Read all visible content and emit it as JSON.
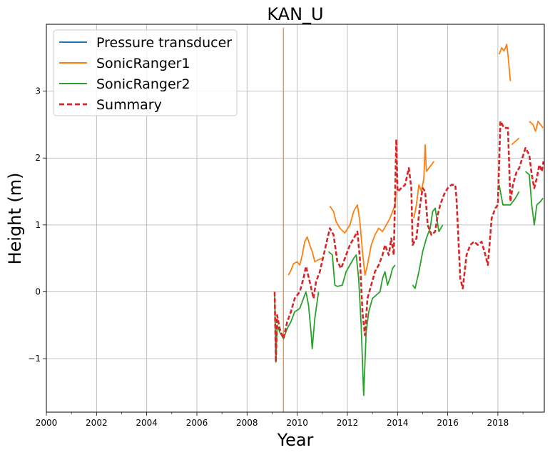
{
  "chart_data": {
    "type": "line",
    "title": "KAN_U",
    "xlabel": "Year",
    "ylabel": "Height (m)",
    "xlim": [
      2000,
      2019.85
    ],
    "ylim": [
      -1.8,
      4.0
    ],
    "x_ticks": [
      "2000",
      "2002",
      "2004",
      "2006",
      "2008",
      "2010",
      "2012",
      "2014",
      "2016",
      "2018"
    ],
    "y_ticks": [
      "−1",
      "0",
      "1",
      "2",
      "3"
    ],
    "y_tick_values": [
      -1,
      0,
      1,
      2,
      3
    ],
    "grid": true,
    "legend_position": "top-left",
    "series": [
      {
        "name": "Pressure transducer",
        "color": "#1f77b4",
        "style": "solid",
        "points": []
      },
      {
        "name": "SonicRanger1",
        "color": "#ff7f0e",
        "style": "solid",
        "segments": [
          [
            [
              2009.45,
              3.95
            ],
            [
              2009.45,
              -1.8
            ]
          ],
          [
            [
              2009.65,
              0.25
            ],
            [
              2009.75,
              0.32
            ],
            [
              2009.85,
              0.42
            ],
            [
              2010.0,
              0.45
            ],
            [
              2010.1,
              0.4
            ],
            [
              2010.2,
              0.55
            ],
            [
              2010.3,
              0.75
            ],
            [
              2010.4,
              0.82
            ],
            [
              2010.5,
              0.7
            ],
            [
              2010.6,
              0.6
            ],
            [
              2010.7,
              0.45
            ],
            [
              2010.85,
              0.48
            ],
            [
              2011.0,
              0.5
            ]
          ],
          [
            [
              2011.3,
              1.28
            ],
            [
              2011.45,
              1.2
            ],
            [
              2011.55,
              1.05
            ],
            [
              2011.7,
              0.95
            ],
            [
              2011.9,
              0.88
            ],
            [
              2012.1,
              1.0
            ],
            [
              2012.25,
              1.2
            ],
            [
              2012.4,
              1.3
            ],
            [
              2012.5,
              1.05
            ],
            [
              2012.6,
              0.6
            ],
            [
              2012.7,
              0.25
            ],
            [
              2012.8,
              0.4
            ],
            [
              2012.95,
              0.7
            ],
            [
              2013.1,
              0.85
            ],
            [
              2013.25,
              0.95
            ],
            [
              2013.4,
              0.9
            ],
            [
              2013.55,
              1.0
            ],
            [
              2013.7,
              1.1
            ],
            [
              2013.8,
              1.2
            ],
            [
              2013.9,
              1.3
            ],
            [
              2013.95,
              1.5
            ]
          ],
          [
            [
              2014.65,
              1.1
            ],
            [
              2014.75,
              1.3
            ],
            [
              2014.85,
              1.6
            ],
            [
              2014.95,
              1.5
            ],
            [
              2015.05,
              1.7
            ],
            [
              2015.1,
              2.2
            ],
            [
              2015.15,
              1.8
            ],
            [
              2015.25,
              1.85
            ],
            [
              2015.35,
              1.9
            ],
            [
              2015.45,
              1.95
            ]
          ],
          [
            [
              2018.05,
              3.55
            ],
            [
              2018.15,
              3.65
            ],
            [
              2018.25,
              3.6
            ],
            [
              2018.35,
              3.7
            ],
            [
              2018.4,
              3.55
            ],
            [
              2018.5,
              3.15
            ]
          ],
          [
            [
              2018.55,
              2.2
            ],
            [
              2018.7,
              2.25
            ],
            [
              2018.85,
              2.3
            ]
          ],
          [
            [
              2019.25,
              2.55
            ],
            [
              2019.4,
              2.5
            ],
            [
              2019.5,
              2.4
            ],
            [
              2019.6,
              2.55
            ],
            [
              2019.7,
              2.5
            ],
            [
              2019.8,
              2.45
            ]
          ]
        ]
      },
      {
        "name": "SonicRanger2",
        "color": "#2ca02c",
        "style": "solid",
        "segments": [
          [
            [
              2009.1,
              0.0
            ],
            [
              2009.15,
              -1.05
            ],
            [
              2009.2,
              -0.5
            ],
            [
              2009.3,
              -0.6
            ],
            [
              2009.45,
              -0.7
            ],
            [
              2009.6,
              -0.55
            ],
            [
              2009.75,
              -0.45
            ],
            [
              2009.9,
              -0.3
            ],
            [
              2010.1,
              -0.25
            ],
            [
              2010.25,
              -0.1
            ],
            [
              2010.35,
              0.0
            ],
            [
              2010.45,
              -0.2
            ],
            [
              2010.55,
              -0.6
            ],
            [
              2010.6,
              -0.85
            ],
            [
              2010.7,
              -0.4
            ],
            [
              2010.85,
              0.0
            ]
          ],
          [
            [
              2011.25,
              0.6
            ],
            [
              2011.4,
              0.55
            ],
            [
              2011.5,
              0.1
            ],
            [
              2011.6,
              0.08
            ],
            [
              2011.8,
              0.1
            ],
            [
              2011.95,
              0.3
            ],
            [
              2012.1,
              0.4
            ],
            [
              2012.25,
              0.5
            ],
            [
              2012.35,
              0.55
            ],
            [
              2012.45,
              0.2
            ],
            [
              2012.55,
              -0.5
            ],
            [
              2012.65,
              -1.55
            ],
            [
              2012.75,
              -0.6
            ],
            [
              2012.85,
              -0.3
            ],
            [
              2013.0,
              -0.1
            ],
            [
              2013.15,
              -0.05
            ],
            [
              2013.3,
              0.0
            ],
            [
              2013.4,
              0.2
            ],
            [
              2013.5,
              0.3
            ],
            [
              2013.6,
              0.1
            ],
            [
              2013.7,
              0.2
            ],
            [
              2013.8,
              0.35
            ],
            [
              2013.9,
              0.4
            ]
          ],
          [
            [
              2014.6,
              0.1
            ],
            [
              2014.7,
              0.05
            ],
            [
              2014.85,
              0.3
            ],
            [
              2015.0,
              0.6
            ],
            [
              2015.15,
              0.8
            ],
            [
              2015.3,
              0.95
            ],
            [
              2015.4,
              1.2
            ],
            [
              2015.5,
              1.25
            ],
            [
              2015.65,
              0.9
            ],
            [
              2015.8,
              1.0
            ]
          ],
          [
            [
              2018.05,
              1.6
            ],
            [
              2018.2,
              1.3
            ],
            [
              2018.35,
              1.3
            ],
            [
              2018.5,
              1.3
            ],
            [
              2018.7,
              1.4
            ],
            [
              2018.85,
              1.5
            ]
          ],
          [
            [
              2019.1,
              1.8
            ],
            [
              2019.25,
              1.75
            ],
            [
              2019.35,
              1.3
            ],
            [
              2019.45,
              1.0
            ],
            [
              2019.55,
              1.3
            ],
            [
              2019.7,
              1.35
            ],
            [
              2019.8,
              1.4
            ]
          ]
        ]
      },
      {
        "name": "Summary",
        "color": "#d62728",
        "style": "dashed",
        "points": [
          [
            2009.1,
            0.0
          ],
          [
            2009.15,
            -1.05
          ],
          [
            2009.2,
            -0.35
          ],
          [
            2009.3,
            -0.55
          ],
          [
            2009.45,
            -0.7
          ],
          [
            2009.6,
            -0.45
          ],
          [
            2009.75,
            -0.3
          ],
          [
            2009.9,
            -0.1
          ],
          [
            2010.1,
            0.0
          ],
          [
            2010.25,
            0.2
          ],
          [
            2010.35,
            0.38
          ],
          [
            2010.5,
            0.15
          ],
          [
            2010.65,
            -0.1
          ],
          [
            2010.75,
            0.15
          ],
          [
            2010.9,
            0.3
          ],
          [
            2011.3,
            0.95
          ],
          [
            2011.45,
            0.85
          ],
          [
            2011.6,
            0.45
          ],
          [
            2011.75,
            0.35
          ],
          [
            2011.95,
            0.55
          ],
          [
            2012.1,
            0.7
          ],
          [
            2012.25,
            0.8
          ],
          [
            2012.4,
            0.9
          ],
          [
            2012.5,
            0.5
          ],
          [
            2012.6,
            -0.3
          ],
          [
            2012.7,
            -0.65
          ],
          [
            2012.8,
            -0.1
          ],
          [
            2012.95,
            0.1
          ],
          [
            2013.1,
            0.3
          ],
          [
            2013.25,
            0.4
          ],
          [
            2013.4,
            0.55
          ],
          [
            2013.5,
            0.7
          ],
          [
            2013.65,
            0.55
          ],
          [
            2013.75,
            0.8
          ],
          [
            2013.85,
            0.55
          ],
          [
            2013.95,
            2.28
          ],
          [
            2014.0,
            1.5
          ],
          [
            2014.15,
            1.55
          ],
          [
            2014.3,
            1.6
          ],
          [
            2014.45,
            1.85
          ],
          [
            2014.55,
            1.55
          ],
          [
            2014.6,
            0.7
          ],
          [
            2014.75,
            0.8
          ],
          [
            2014.9,
            1.3
          ],
          [
            2015.0,
            1.55
          ],
          [
            2015.1,
            1.5
          ],
          [
            2015.2,
            1.0
          ],
          [
            2015.35,
            0.85
          ],
          [
            2015.5,
            0.9
          ],
          [
            2015.6,
            1.15
          ],
          [
            2015.7,
            1.3
          ],
          [
            2015.85,
            1.45
          ],
          [
            2016.0,
            1.55
          ],
          [
            2016.15,
            1.6
          ],
          [
            2016.3,
            1.6
          ],
          [
            2016.35,
            1.4
          ],
          [
            2016.5,
            0.2
          ],
          [
            2016.6,
            0.05
          ],
          [
            2016.75,
            0.55
          ],
          [
            2016.9,
            0.7
          ],
          [
            2017.05,
            0.75
          ],
          [
            2017.2,
            0.7
          ],
          [
            2017.35,
            0.75
          ],
          [
            2017.5,
            0.55
          ],
          [
            2017.6,
            0.4
          ],
          [
            2017.75,
            1.1
          ],
          [
            2017.9,
            1.25
          ],
          [
            2018.0,
            1.3
          ],
          [
            2018.1,
            2.55
          ],
          [
            2018.25,
            2.45
          ],
          [
            2018.4,
            2.45
          ],
          [
            2018.5,
            1.35
          ],
          [
            2018.6,
            1.6
          ],
          [
            2018.75,
            1.8
          ],
          [
            2018.85,
            1.85
          ],
          [
            2019.1,
            2.15
          ],
          [
            2019.25,
            2.05
          ],
          [
            2019.35,
            1.75
          ],
          [
            2019.45,
            1.55
          ],
          [
            2019.55,
            1.7
          ],
          [
            2019.65,
            1.9
          ],
          [
            2019.75,
            1.8
          ],
          [
            2019.82,
            1.95
          ]
        ]
      }
    ]
  }
}
